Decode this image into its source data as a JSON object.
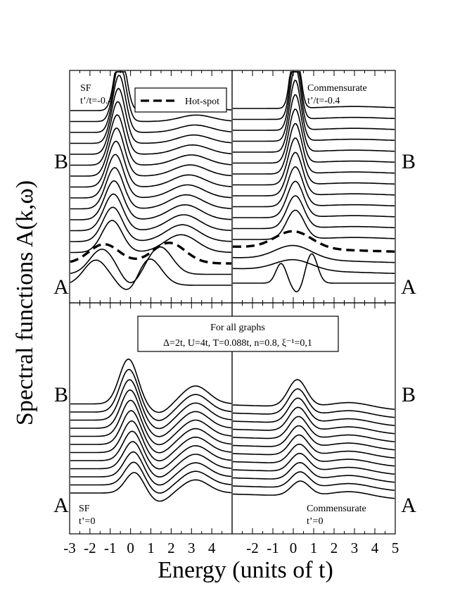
{
  "figure": {
    "ylabel": "Spectral functions A(k,ω)",
    "xlabel": "Energy (units of t)",
    "row_label_top": "B",
    "row_label_bottom": "A"
  },
  "chart_data": [
    {
      "type": "line",
      "panel": "top-left",
      "annotation": [
        "SF",
        "t’/t=-0.4"
      ],
      "legend": {
        "label": "Hot-spot",
        "position": "top-center",
        "style": "dashed"
      },
      "xlim": [
        -3,
        5
      ],
      "n_curves": 17,
      "hot_spot_index": 2,
      "peak1_center": [
        -1.7,
        -0.5
      ],
      "peak2_center": [
        1.0,
        3.3
      ],
      "grid": false
    },
    {
      "type": "line",
      "panel": "top-right",
      "annotation": [
        "Commensurate",
        "t’/t=-0.4"
      ],
      "xlim": [
        -3,
        5
      ],
      "n_curves": 17,
      "hot_spot_index": 3,
      "grid": false
    },
    {
      "type": "line",
      "panel": "bottom-left",
      "annotation": [
        "SF",
        "t’=0"
      ],
      "info_box": [
        "For all graphs",
        "Δ=2t, U=4t, T=0.088t, n=0.8, ξ⁻¹=0,1"
      ],
      "xlim": [
        -3,
        5
      ],
      "xticks": [
        "-3",
        "-2",
        "-1",
        "0",
        "1",
        "2",
        "3",
        "4"
      ],
      "n_curves": 12,
      "grid": false
    },
    {
      "type": "line",
      "panel": "bottom-right",
      "annotation": [
        "Commensurate",
        "t’=0"
      ],
      "xlim": [
        -3,
        5
      ],
      "xticks": [
        "-2",
        "-1",
        "0",
        "1",
        "2",
        "3",
        "4",
        "5"
      ],
      "n_curves": 12,
      "grid": false
    }
  ]
}
